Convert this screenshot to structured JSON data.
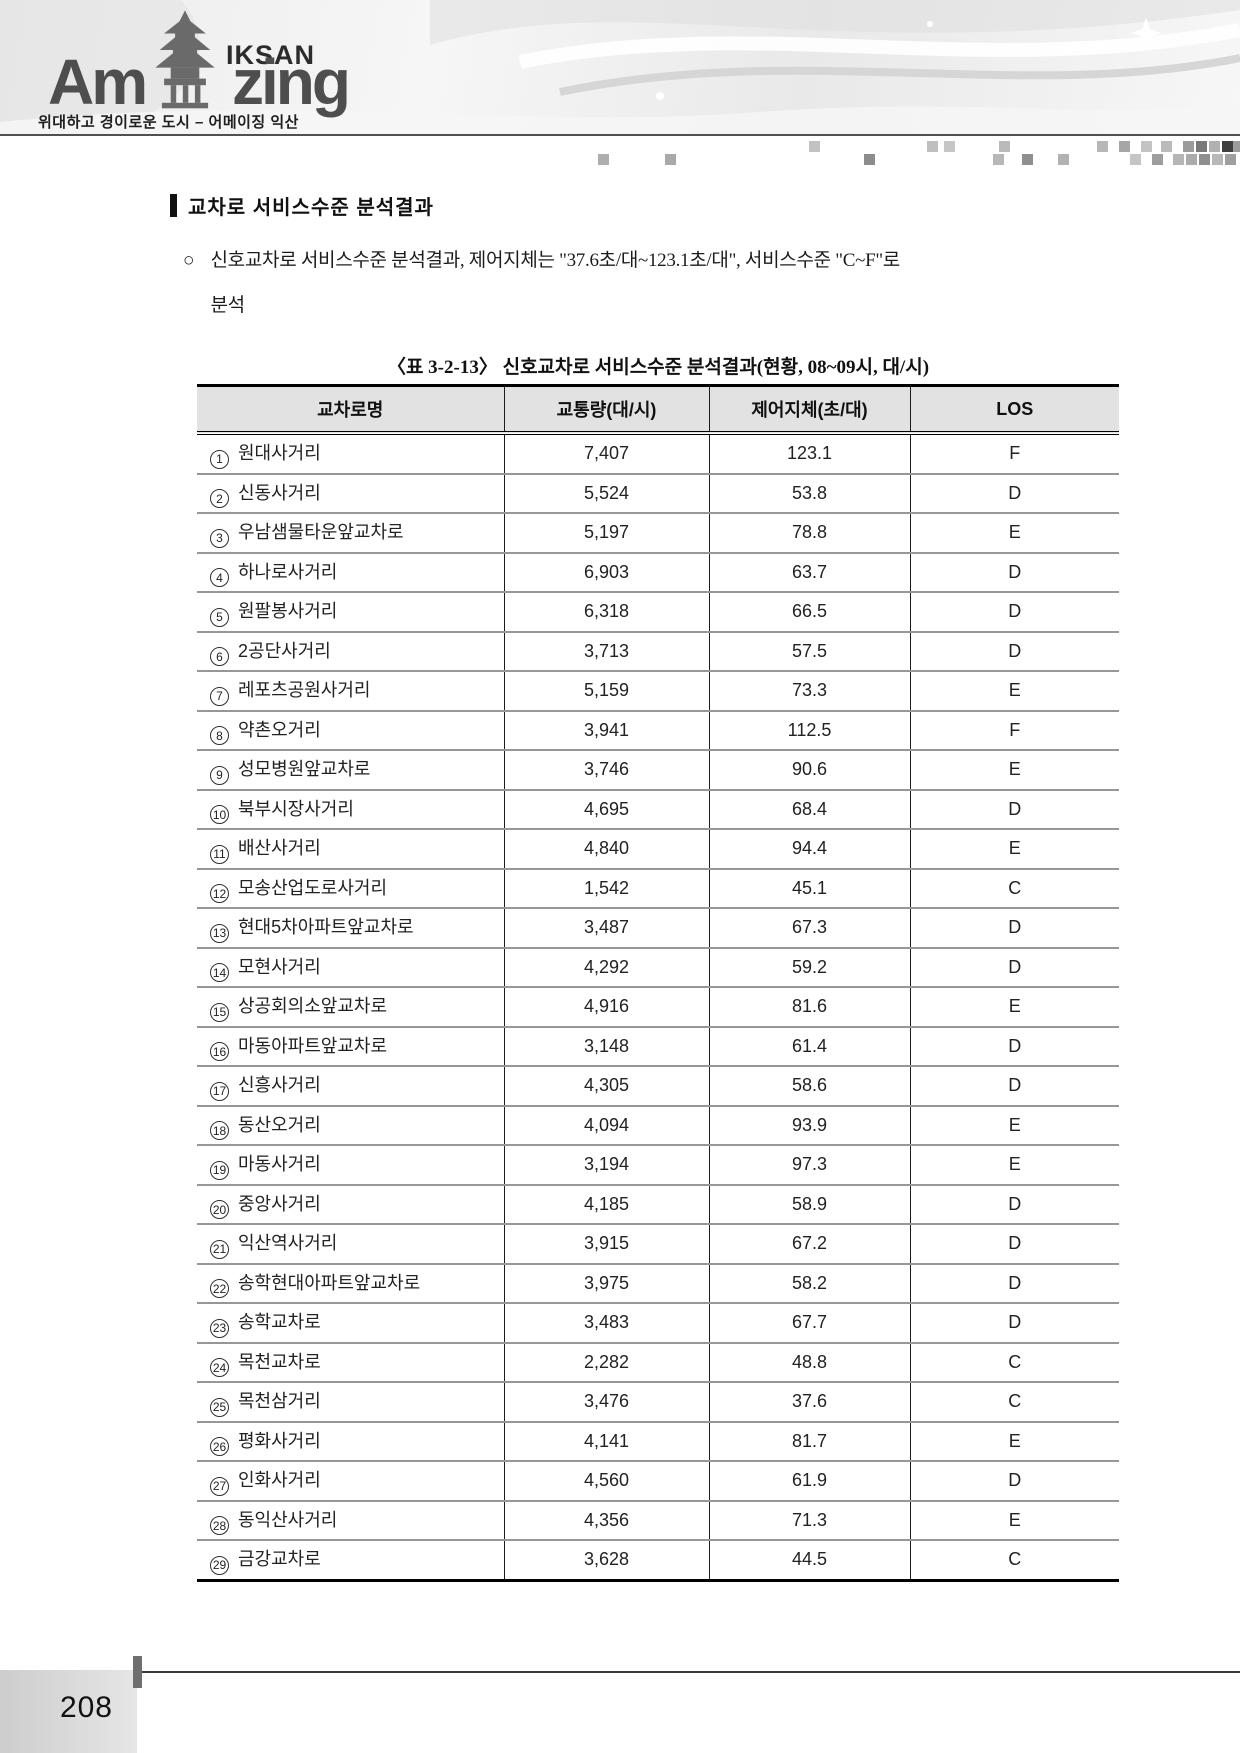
{
  "logo": {
    "am": "Am",
    "zing": "zing",
    "iksan": "IKSAN",
    "tagline": "위대하고 경이로운 도시 – 어메이징 익산"
  },
  "section": {
    "title": "교차로 서비스수준 분석결과",
    "bullet_marker": "○",
    "bullet_line1": "신호교차로 서비스수준 분석결과, 제어지체는 \"37.6초/대~123.1초/대\", 서비스수준 \"C~F\"로",
    "bullet_line2": "분석"
  },
  "table": {
    "caption": "〈표 3-2-13〉 신호교차로 서비스수준 분석결과(현황, 08~09시, 대/시)",
    "headers": [
      "교차로명",
      "교통량(대/시)",
      "제어지체(초/대)",
      "LOS"
    ],
    "rows": [
      {
        "num": "1",
        "name": "원대사거리",
        "volume": "7,407",
        "delay": "123.1",
        "los": "F"
      },
      {
        "num": "2",
        "name": "신동사거리",
        "volume": "5,524",
        "delay": "53.8",
        "los": "D"
      },
      {
        "num": "3",
        "name": "우남샘물타운앞교차로",
        "volume": "5,197",
        "delay": "78.8",
        "los": "E"
      },
      {
        "num": "4",
        "name": "하나로사거리",
        "volume": "6,903",
        "delay": "63.7",
        "los": "D"
      },
      {
        "num": "5",
        "name": "원팔봉사거리",
        "volume": "6,318",
        "delay": "66.5",
        "los": "D"
      },
      {
        "num": "6",
        "name": "2공단사거리",
        "volume": "3,713",
        "delay": "57.5",
        "los": "D"
      },
      {
        "num": "7",
        "name": "레포츠공원사거리",
        "volume": "5,159",
        "delay": "73.3",
        "los": "E"
      },
      {
        "num": "8",
        "name": "약촌오거리",
        "volume": "3,941",
        "delay": "112.5",
        "los": "F"
      },
      {
        "num": "9",
        "name": "성모병원앞교차로",
        "volume": "3,746",
        "delay": "90.6",
        "los": "E"
      },
      {
        "num": "10",
        "name": "북부시장사거리",
        "volume": "4,695",
        "delay": "68.4",
        "los": "D"
      },
      {
        "num": "11",
        "name": "배산사거리",
        "volume": "4,840",
        "delay": "94.4",
        "los": "E"
      },
      {
        "num": "12",
        "name": "모송산업도로사거리",
        "volume": "1,542",
        "delay": "45.1",
        "los": "C"
      },
      {
        "num": "13",
        "name": "현대5차아파트앞교차로",
        "volume": "3,487",
        "delay": "67.3",
        "los": "D"
      },
      {
        "num": "14",
        "name": "모현사거리",
        "volume": "4,292",
        "delay": "59.2",
        "los": "D"
      },
      {
        "num": "15",
        "name": "상공회의소앞교차로",
        "volume": "4,916",
        "delay": "81.6",
        "los": "E"
      },
      {
        "num": "16",
        "name": "마동아파트앞교차로",
        "volume": "3,148",
        "delay": "61.4",
        "los": "D"
      },
      {
        "num": "17",
        "name": "신흥사거리",
        "volume": "4,305",
        "delay": "58.6",
        "los": "D"
      },
      {
        "num": "18",
        "name": "동산오거리",
        "volume": "4,094",
        "delay": "93.9",
        "los": "E"
      },
      {
        "num": "19",
        "name": "마동사거리",
        "volume": "3,194",
        "delay": "97.3",
        "los": "E"
      },
      {
        "num": "20",
        "name": "중앙사거리",
        "volume": "4,185",
        "delay": "58.9",
        "los": "D"
      },
      {
        "num": "21",
        "name": "익산역사거리",
        "volume": "3,915",
        "delay": "67.2",
        "los": "D"
      },
      {
        "num": "22",
        "name": "송학현대아파트앞교차로",
        "volume": "3,975",
        "delay": "58.2",
        "los": "D"
      },
      {
        "num": "23",
        "name": "송학교차로",
        "volume": "3,483",
        "delay": "67.7",
        "los": "D"
      },
      {
        "num": "24",
        "name": "목천교차로",
        "volume": "2,282",
        "delay": "48.8",
        "los": "C"
      },
      {
        "num": "25",
        "name": "목천삼거리",
        "volume": "3,476",
        "delay": "37.6",
        "los": "C"
      },
      {
        "num": "26",
        "name": "평화사거리",
        "volume": "4,141",
        "delay": "81.7",
        "los": "E"
      },
      {
        "num": "27",
        "name": "인화사거리",
        "volume": "4,560",
        "delay": "61.9",
        "los": "D"
      },
      {
        "num": "28",
        "name": "동익산사거리",
        "volume": "4,356",
        "delay": "71.3",
        "los": "E"
      },
      {
        "num": "29",
        "name": "금강교차로",
        "volume": "3,628",
        "delay": "44.5",
        "los": "C"
      }
    ]
  },
  "footer": {
    "page_number": "208"
  },
  "colors": {
    "table_header_bg": "#e2e2e2",
    "row_separator": "#979797",
    "table_border": "#000000",
    "footer_box_bg": "#d5d5d5"
  }
}
